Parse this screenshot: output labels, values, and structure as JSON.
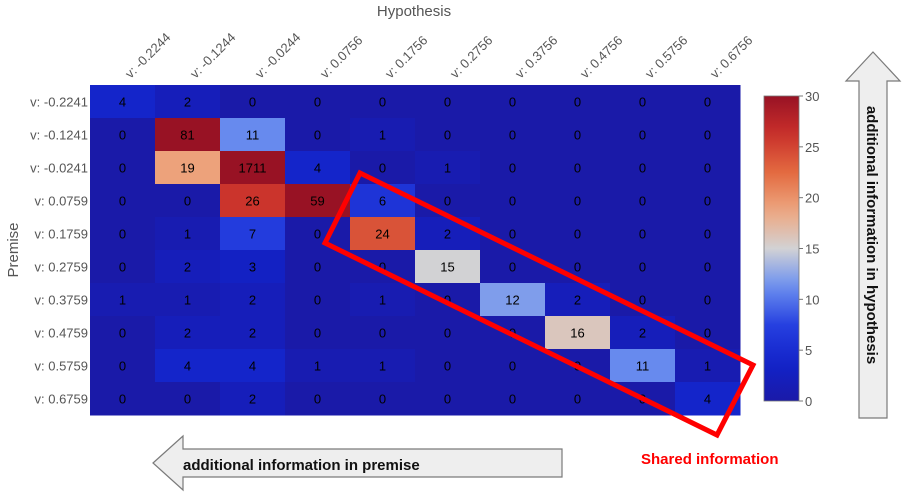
{
  "chart_data": {
    "type": "heatmap",
    "xlabel": "Hypothesis",
    "ylabel": "Premise",
    "x_categories": [
      "v: -0.2244",
      "v: -0.1244",
      "v: -0.0244",
      "v: 0.0756",
      "v: 0.1756",
      "v: 0.2756",
      "v: 0.3756",
      "v: 0.4756",
      "v: 0.5756",
      "v: 0.6756"
    ],
    "y_categories": [
      "v: -0.2241",
      "v: -0.1241",
      "v: -0.0241",
      "v: 0.0759",
      "v: 0.1759",
      "v: 0.2759",
      "v: 0.3759",
      "v: 0.4759",
      "v: 0.5759",
      "v: 0.6759"
    ],
    "values": [
      [
        4,
        2,
        0,
        0,
        0,
        0,
        0,
        0,
        0,
        0
      ],
      [
        0,
        81,
        11,
        0,
        1,
        0,
        0,
        0,
        0,
        0
      ],
      [
        0,
        19,
        1711,
        4,
        0,
        1,
        0,
        0,
        0,
        0
      ],
      [
        0,
        0,
        26,
        59,
        6,
        0,
        0,
        0,
        0,
        0
      ],
      [
        0,
        1,
        7,
        0,
        24,
        2,
        0,
        0,
        0,
        0
      ],
      [
        0,
        2,
        3,
        0,
        0,
        15,
        0,
        0,
        0,
        0
      ],
      [
        1,
        1,
        2,
        0,
        1,
        0,
        12,
        2,
        0,
        0
      ],
      [
        0,
        2,
        2,
        0,
        0,
        0,
        0,
        16,
        2,
        0
      ],
      [
        0,
        4,
        4,
        1,
        1,
        0,
        0,
        0,
        11,
        1
      ],
      [
        0,
        0,
        2,
        0,
        0,
        0,
        0,
        0,
        0,
        4
      ]
    ],
    "colorbar": {
      "min": 0,
      "max": 30,
      "ticks": [
        0,
        5,
        10,
        15,
        20,
        25,
        30
      ],
      "colormap": "coolwarm"
    }
  },
  "annotations": {
    "premise_arrow": "additional information in premise",
    "hypothesis_arrow": "additional information in hypothesis",
    "shared_label": "Shared information",
    "highlight_color": "#ff0000"
  }
}
